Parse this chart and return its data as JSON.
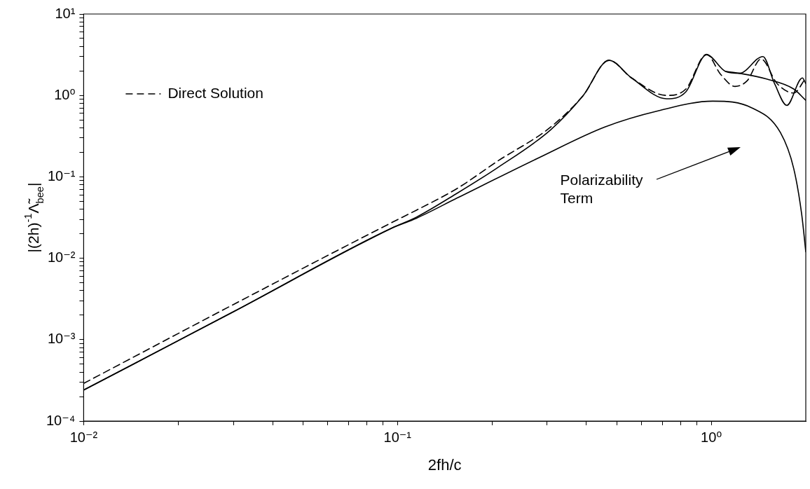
{
  "chart_data": {
    "type": "line",
    "xlabel": "2fh/c",
    "ylabel": "|(2h)$^{-1}$Λ̃$_{bee}$|",
    "log": "xy",
    "legend": "top left",
    "marker": "none",
    "xlim": [
      0.01,
      2
    ],
    "ylim": [
      0.0001,
      10
    ],
    "xticks": [
      {
        "value": 0.01,
        "label": "10⁻²"
      },
      {
        "value": 0.02,
        "label": null
      },
      {
        "value": 0.03,
        "label": null
      },
      {
        "value": 0.04,
        "label": null
      },
      {
        "value": 0.05,
        "label": null
      },
      {
        "value": 0.06,
        "label": null
      },
      {
        "value": 0.07,
        "label": null
      },
      {
        "value": 0.08,
        "label": null
      },
      {
        "value": 0.09,
        "label": null
      },
      {
        "value": 0.1,
        "label": "10⁻¹"
      },
      {
        "value": 0.2,
        "label": null
      },
      {
        "value": 0.3,
        "label": null
      },
      {
        "value": 0.4,
        "label": null
      },
      {
        "value": 0.5,
        "label": null
      },
      {
        "value": 0.6,
        "label": null
      },
      {
        "value": 0.7,
        "label": null
      },
      {
        "value": 0.8,
        "label": null
      },
      {
        "value": 0.9,
        "label": null
      },
      {
        "value": 1,
        "label": "10⁰"
      }
    ],
    "yticks": [
      {
        "value": 0.0001,
        "label": "10⁻⁴"
      },
      {
        "value": 0.0002,
        "label": null
      },
      {
        "value": 0.0003,
        "label": null
      },
      {
        "value": 0.0004,
        "label": null
      },
      {
        "value": 0.0005,
        "label": null
      },
      {
        "value": 0.0006,
        "label": null
      },
      {
        "value": 0.0007,
        "label": null
      },
      {
        "value": 0.0008,
        "label": null
      },
      {
        "value": 0.0009,
        "label": null
      },
      {
        "value": 0.001,
        "label": "10⁻³"
      },
      {
        "value": 0.002,
        "label": null
      },
      {
        "value": 0.003,
        "label": null
      },
      {
        "value": 0.004,
        "label": null
      },
      {
        "value": 0.005,
        "label": null
      },
      {
        "value": 0.006,
        "label": null
      },
      {
        "value": 0.007,
        "label": null
      },
      {
        "value": 0.008,
        "label": null
      },
      {
        "value": 0.009,
        "label": null
      },
      {
        "value": 0.01,
        "label": "10⁻²"
      },
      {
        "value": 0.02,
        "label": null
      },
      {
        "value": 0.03,
        "label": null
      },
      {
        "value": 0.04,
        "label": null
      },
      {
        "value": 0.05,
        "label": null
      },
      {
        "value": 0.06,
        "label": null
      },
      {
        "value": 0.07,
        "label": null
      },
      {
        "value": 0.08,
        "label": null
      },
      {
        "value": 0.09,
        "label": null
      },
      {
        "value": 0.1,
        "label": "10⁻¹"
      },
      {
        "value": 0.2,
        "label": null
      },
      {
        "value": 0.3,
        "label": null
      },
      {
        "value": 0.4,
        "label": null
      },
      {
        "value": 0.5,
        "label": null
      },
      {
        "value": 0.6,
        "label": null
      },
      {
        "value": 0.7,
        "label": null
      },
      {
        "value": 0.8,
        "label": null
      },
      {
        "value": 0.9,
        "label": null
      },
      {
        "value": 1,
        "label": "10⁰"
      },
      {
        "value": 2,
        "label": null
      },
      {
        "value": 3,
        "label": null
      },
      {
        "value": 4,
        "label": null
      },
      {
        "value": 5,
        "label": null
      },
      {
        "value": 6,
        "label": null
      },
      {
        "value": 7,
        "label": null
      },
      {
        "value": 8,
        "label": null
      },
      {
        "value": 9,
        "label": null
      },
      {
        "value": 10,
        "label": "10¹"
      }
    ],
    "series": [
      {
        "name": "Direct Solution",
        "color": "#000000",
        "line_style": "dashed",
        "x": [
          0.01,
          0.03,
          0.096,
          0.115,
          0.155,
          0.208,
          0.308,
          0.39,
          0.472,
          0.557,
          0.72,
          0.83,
          0.966,
          1.07,
          1.19,
          1.3,
          1.44,
          1.62,
          1.83,
          2.0
        ],
        "values": [
          0.00029,
          0.0027,
          0.0275,
          0.039,
          0.072,
          0.155,
          0.41,
          0.99,
          2.7,
          1.64,
          1.0,
          1.2,
          3.2,
          1.82,
          1.29,
          1.51,
          2.8,
          1.4,
          1.07,
          1.64
        ]
      },
      {
        "color": "#000000",
        "line_style": "solid",
        "x": [
          0.01,
          0.03,
          0.096,
          0.115,
          0.155,
          0.208,
          0.308,
          0.39,
          0.472,
          0.557,
          0.72,
          0.83,
          0.966,
          1.11,
          1.23,
          1.46,
          1.59,
          1.74,
          1.95,
          2.0
        ],
        "values": [
          0.00024,
          0.0022,
          0.0235,
          0.032,
          0.063,
          0.129,
          0.38,
          0.99,
          2.7,
          1.64,
          0.91,
          1.11,
          3.16,
          1.97,
          1.87,
          3.0,
          1.4,
          0.755,
          1.64,
          1.4
        ]
      },
      {
        "color": "#000000",
        "line_style": "solid",
        "x": [
          1.11,
          1.23,
          1.5,
          1.83,
          2.0
        ],
        "values": [
          1.97,
          1.87,
          1.59,
          1.2,
          0.87
        ]
      },
      {
        "color": "#000000",
        "line_style": "solid",
        "x": [
          0.01,
          0.03,
          0.096,
          0.115,
          0.155,
          0.285,
          0.458,
          0.68,
          1.01,
          1.35,
          1.66,
          1.83,
          1.94,
          2.0
        ],
        "values": [
          0.00024,
          0.0022,
          0.0235,
          0.031,
          0.055,
          0.175,
          0.41,
          0.65,
          0.85,
          0.7,
          0.35,
          0.127,
          0.035,
          0.012
        ]
      }
    ],
    "annotations": [
      "Polarizability Term"
    ]
  }
}
